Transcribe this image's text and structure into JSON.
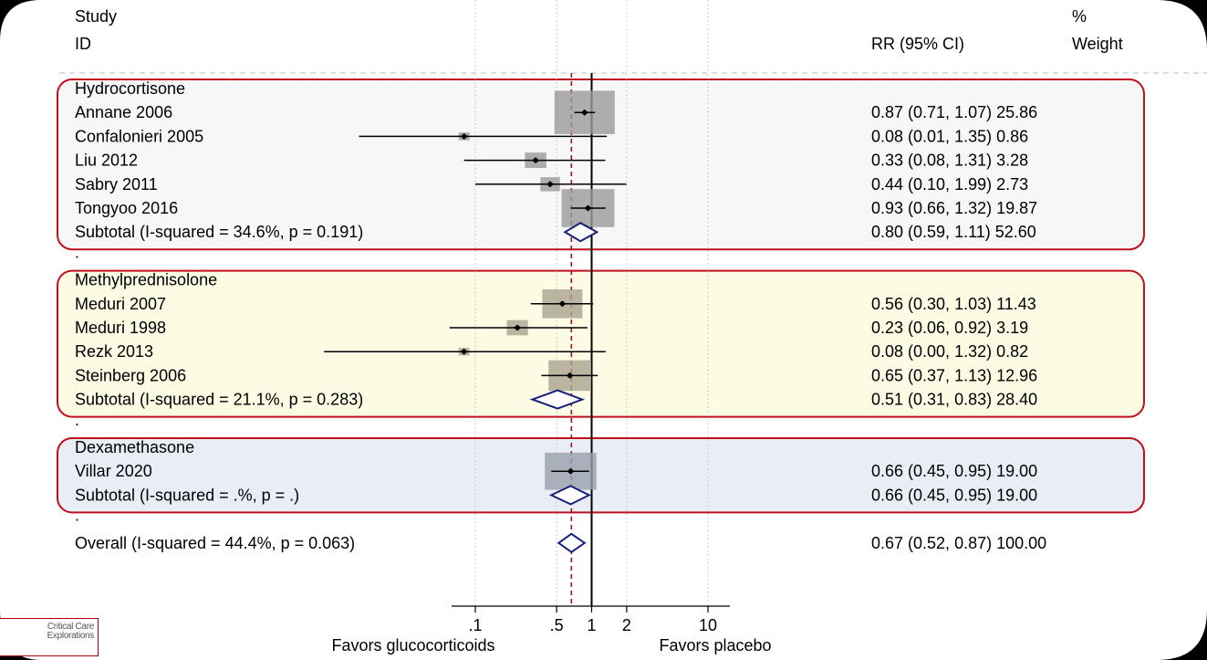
{
  "header": {
    "study_line1": "Study",
    "study_line2": "ID",
    "rr_label": "RR (95% CI)",
    "weight_line1": "%",
    "weight_line2": "Weight"
  },
  "colors": {
    "group_border": "#c0101c",
    "hydrocortisone_bg": "#f7f7f7",
    "methylprednisolone_bg": "#fcfbe4",
    "dexamethasone_bg": "#e9eef6",
    "diamond": "#16207a",
    "weight_box": "#9a9a9a",
    "overall_line": "#a01020"
  },
  "chart_data": {
    "type": "forest",
    "effect_measure": "RR",
    "x_scale": "log",
    "xlim": [
      0.1,
      10
    ],
    "xticks": [
      0.1,
      0.5,
      1,
      2,
      10
    ],
    "xtick_labels": [
      ".1",
      ".5",
      "1",
      "2",
      "10"
    ],
    "xlabel_left": "Favors glucocorticoids",
    "xlabel_right": "Favors placebo",
    "grid": "dotted vertical at ticks",
    "overall_estimate_line": 0.67,
    "groups": [
      {
        "name": "Hydrocortisone",
        "studies": [
          {
            "id": "Annane 2006",
            "rr": 0.87,
            "lo": 0.71,
            "hi": 1.07,
            "weight": 25.86,
            "text": "0.87 (0.71, 1.07) 25.86"
          },
          {
            "id": "Confalonieri 2005",
            "rr": 0.08,
            "lo": 0.01,
            "hi": 1.35,
            "weight": 0.86,
            "text": "0.08 (0.01, 1.35) 0.86"
          },
          {
            "id": "Liu 2012",
            "rr": 0.33,
            "lo": 0.08,
            "hi": 1.31,
            "weight": 3.28,
            "text": "0.33 (0.08, 1.31) 3.28"
          },
          {
            "id": "Sabry 2011",
            "rr": 0.44,
            "lo": 0.1,
            "hi": 1.99,
            "weight": 2.73,
            "text": "0.44 (0.10, 1.99) 2.73"
          },
          {
            "id": "Tongyoo 2016",
            "rr": 0.93,
            "lo": 0.66,
            "hi": 1.32,
            "weight": 19.87,
            "text": "0.93 (0.66, 1.32) 19.87"
          }
        ],
        "subtotal": {
          "label": "Subtotal  (I-squared = 34.6%, p = 0.191)",
          "rr": 0.8,
          "lo": 0.59,
          "hi": 1.11,
          "weight": 52.6,
          "text": "0.80 (0.59, 1.11) 52.60"
        }
      },
      {
        "name": "Methylprednisolone",
        "studies": [
          {
            "id": "Meduri 2007",
            "rr": 0.56,
            "lo": 0.3,
            "hi": 1.03,
            "weight": 11.43,
            "text": "0.56 (0.30, 1.03) 11.43"
          },
          {
            "id": "Meduri 1998",
            "rr": 0.23,
            "lo": 0.06,
            "hi": 0.92,
            "weight": 3.19,
            "text": "0.23 (0.06, 0.92) 3.19"
          },
          {
            "id": "Rezk 2013",
            "rr": 0.08,
            "lo": 0.0,
            "hi": 1.32,
            "weight": 0.82,
            "text": "0.08 (0.00, 1.32) 0.82"
          },
          {
            "id": "Steinberg 2006",
            "rr": 0.65,
            "lo": 0.37,
            "hi": 1.13,
            "weight": 12.96,
            "text": "0.65 (0.37, 1.13) 12.96"
          }
        ],
        "subtotal": {
          "label": "Subtotal  (I-squared = 21.1%, p = 0.283)",
          "rr": 0.51,
          "lo": 0.31,
          "hi": 0.83,
          "weight": 28.4,
          "text": "0.51 (0.31, 0.83) 28.40"
        }
      },
      {
        "name": "Dexamethasone",
        "studies": [
          {
            "id": "Villar 2020",
            "rr": 0.66,
            "lo": 0.45,
            "hi": 0.95,
            "weight": 19.0,
            "text": "0.66 (0.45, 0.95) 19.00"
          }
        ],
        "subtotal": {
          "label": "Subtotal  (I-squared = .%, p = .)",
          "rr": 0.66,
          "lo": 0.45,
          "hi": 0.95,
          "weight": 19.0,
          "text": "0.66 (0.45, 0.95) 19.00"
        }
      }
    ],
    "overall": {
      "label": "Overall  (I-squared = 44.4%, p = 0.063)",
      "rr": 0.67,
      "lo": 0.52,
      "hi": 0.87,
      "weight": 100.0,
      "text": "0.67 (0.52, 0.87) 100.00"
    },
    "separator": "."
  },
  "logo": {
    "line1": "Critical Care",
    "line2": "Explorations"
  }
}
